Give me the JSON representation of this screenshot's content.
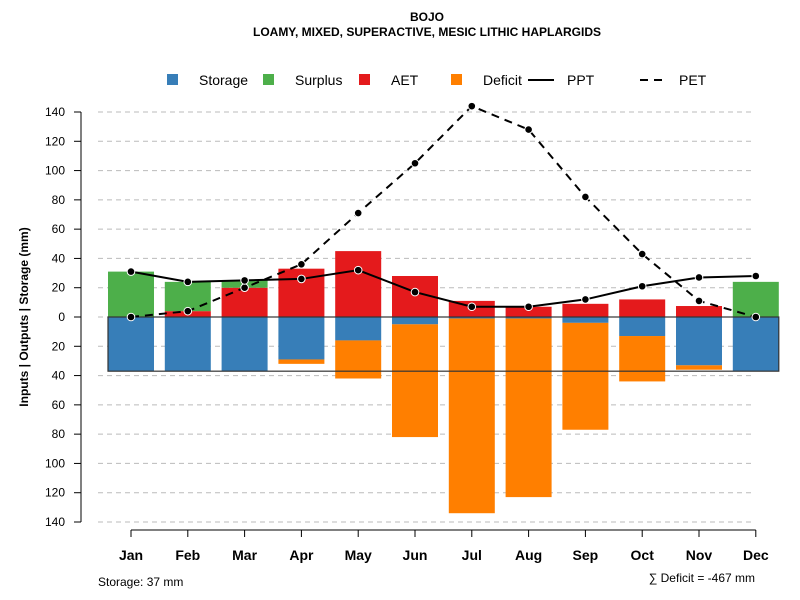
{
  "chart_data": {
    "type": "bar",
    "title": "BOJO",
    "subtitle": "LOAMY, MIXED, SUPERACTIVE, MESIC LITHIC HAPLARGIDS",
    "xlabel": "",
    "ylabel": "Inputs | Outputs | Storage    (mm)",
    "ylim": [
      -140,
      150
    ],
    "yticks": [
      140,
      120,
      100,
      80,
      60,
      40,
      20,
      0,
      20,
      40,
      60,
      80,
      100,
      120,
      140
    ],
    "ytick_values": [
      140,
      120,
      100,
      80,
      60,
      40,
      20,
      0,
      -20,
      -40,
      -60,
      -80,
      -100,
      -120,
      -140
    ],
    "grid": true,
    "legend_position": "top",
    "categories": [
      "Jan",
      "Feb",
      "Mar",
      "Apr",
      "May",
      "Jun",
      "Jul",
      "Aug",
      "Sep",
      "Oct",
      "Nov",
      "Dec"
    ],
    "legend": [
      {
        "name": "Storage",
        "kind": "box",
        "color": "#377EB8"
      },
      {
        "name": "Surplus",
        "kind": "box",
        "color": "#4DAF4A"
      },
      {
        "name": "AET",
        "kind": "box",
        "color": "#E41A1C"
      },
      {
        "name": "Deficit",
        "kind": "box",
        "color": "#FF7F00"
      },
      {
        "name": "PPT",
        "kind": "solid-line",
        "color": "#000000"
      },
      {
        "name": "PET",
        "kind": "dashed-line",
        "color": "#000000"
      }
    ],
    "series": [
      {
        "name": "AET",
        "color": "#E41A1C",
        "values": [
          0,
          4,
          20,
          33,
          45,
          28,
          11,
          7,
          9,
          12,
          7.5,
          0
        ]
      },
      {
        "name": "Surplus",
        "color": "#4DAF4A",
        "values": [
          31,
          20,
          5,
          0,
          0,
          0,
          0,
          0,
          0,
          0,
          0,
          24
        ]
      },
      {
        "name": "Storage",
        "color": "#377EB8",
        "values": [
          37,
          37,
          37,
          29,
          16,
          5,
          1,
          1,
          4,
          13,
          33,
          37
        ]
      },
      {
        "name": "Deficit",
        "color": "#FF7F00",
        "values": [
          0,
          0,
          0,
          3,
          26,
          77,
          133,
          122,
          73,
          31,
          3,
          0
        ]
      },
      {
        "name": "PPT",
        "color": "#000000",
        "values": [
          31,
          24,
          25,
          26,
          32,
          17,
          7,
          7,
          12,
          21,
          27,
          28
        ]
      },
      {
        "name": "PET",
        "color": "#000000",
        "values": [
          0,
          4,
          20,
          36,
          71,
          105,
          144,
          128,
          82,
          43,
          11,
          0
        ]
      }
    ],
    "storage_capacity": 37,
    "annotations": {
      "storage": "Storage: 37 mm",
      "deficit_sum": "∑ Deficit = -467 mm"
    }
  }
}
